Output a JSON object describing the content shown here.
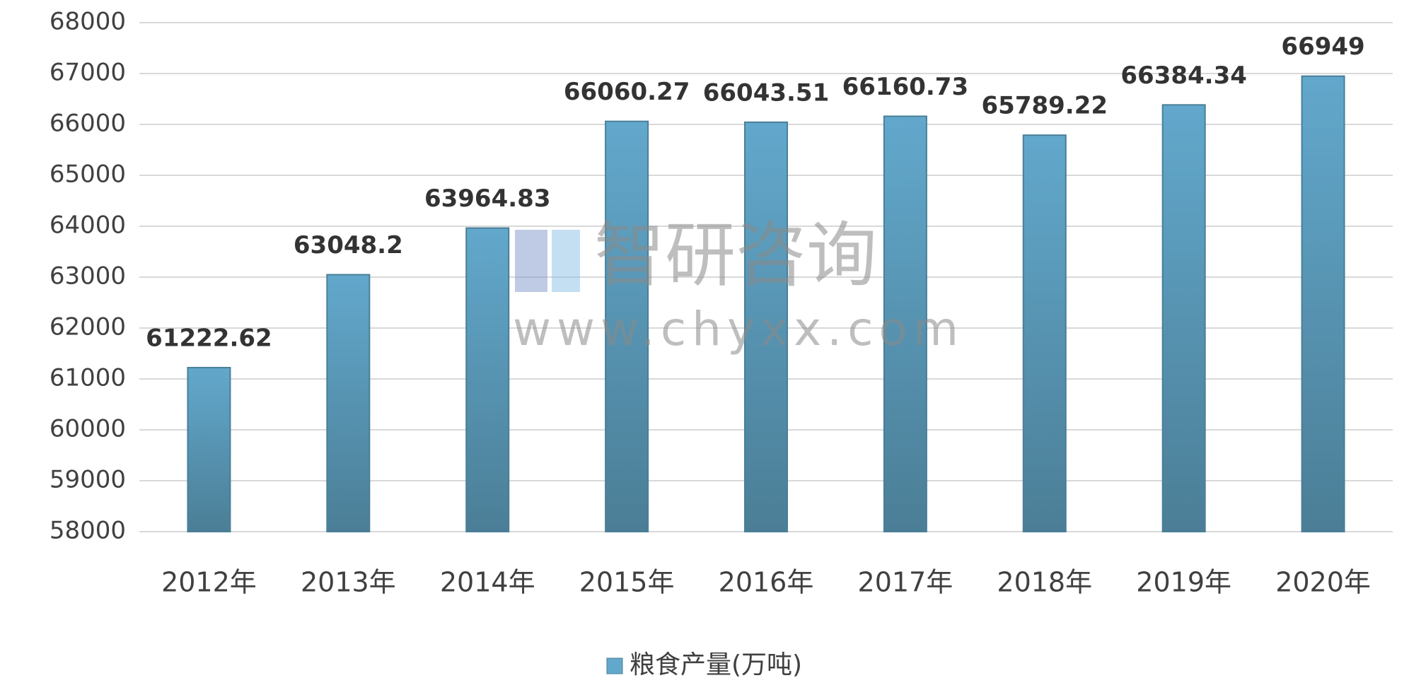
{
  "chart_data": {
    "type": "bar",
    "categories": [
      "2012年",
      "2013年",
      "2014年",
      "2015年",
      "2016年",
      "2017年",
      "2018年",
      "2019年",
      "2020年"
    ],
    "series": [
      {
        "name": "粮食产量(万吨)",
        "color": "#62a8cc",
        "values": [
          61222.62,
          63048.2,
          63964.83,
          66060.27,
          66043.51,
          66160.73,
          65789.22,
          66384.34,
          66949
        ]
      }
    ],
    "ylim": [
      58000,
      68000
    ],
    "yticks": [
      58000,
      59000,
      60000,
      61000,
      62000,
      63000,
      64000,
      65000,
      66000,
      67000,
      68000
    ],
    "grid": true,
    "legend": "bottom",
    "watermark": {
      "name": "智研咨询",
      "url": "www.chyxx.com"
    }
  }
}
